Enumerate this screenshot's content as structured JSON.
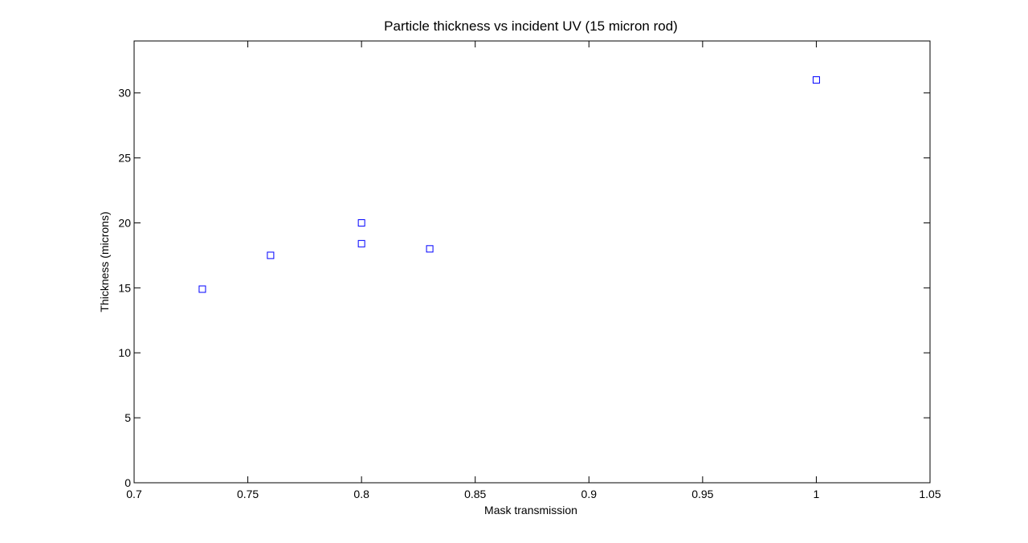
{
  "chart_data": {
    "type": "scatter",
    "title": "Particle thickness vs incident UV (15 micron rod)",
    "xlabel": "Mask transmission",
    "ylabel": "Thickness (microns)",
    "xlim": [
      0.7,
      1.05
    ],
    "ylim": [
      0,
      34
    ],
    "xticks": [
      "0.7",
      "0.75",
      "0.8",
      "0.85",
      "0.9",
      "0.95",
      "1",
      "1.05"
    ],
    "yticks": [
      "0",
      "5",
      "10",
      "15",
      "20",
      "25",
      "30"
    ],
    "marker": "square",
    "marker_color": "#0000ff",
    "grid": false,
    "series": [
      {
        "x": [
          0.73,
          0.76,
          0.8,
          0.8,
          0.83,
          1.0
        ],
        "y": [
          14.9,
          17.5,
          20.0,
          18.4,
          18.0,
          31.0
        ]
      }
    ]
  }
}
